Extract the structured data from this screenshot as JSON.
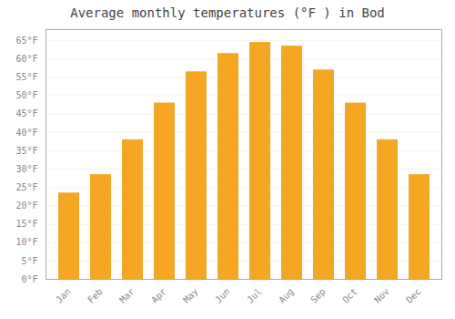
{
  "chart_data": {
    "type": "bar",
    "title": "Average monthly temperatures (°F ) in Bod",
    "categories": [
      "Jan",
      "Feb",
      "Mar",
      "Apr",
      "May",
      "Jun",
      "Jul",
      "Aug",
      "Sep",
      "Oct",
      "Nov",
      "Dec"
    ],
    "values": [
      23.5,
      28.5,
      38.0,
      48.0,
      56.5,
      61.5,
      64.5,
      63.5,
      57.0,
      48.0,
      38.0,
      28.5
    ],
    "color": "#F5A623",
    "ylim": [
      0,
      68
    ],
    "yticks": [
      {
        "value": 0,
        "label": "0°F"
      },
      {
        "value": 5,
        "label": "5°F"
      },
      {
        "value": 10,
        "label": "10°F"
      },
      {
        "value": 15,
        "label": "15°F"
      },
      {
        "value": 20,
        "label": "20°F"
      },
      {
        "value": 25,
        "label": "25°F"
      },
      {
        "value": 30,
        "label": "30°F"
      },
      {
        "value": 35,
        "label": "35°F"
      },
      {
        "value": 40,
        "label": "40°F"
      },
      {
        "value": 45,
        "label": "45°F"
      },
      {
        "value": 50,
        "label": "50°F"
      },
      {
        "value": 55,
        "label": "55°F"
      },
      {
        "value": 60,
        "label": "60°F"
      },
      {
        "value": 65,
        "label": "65°F"
      }
    ],
    "grid": true
  }
}
